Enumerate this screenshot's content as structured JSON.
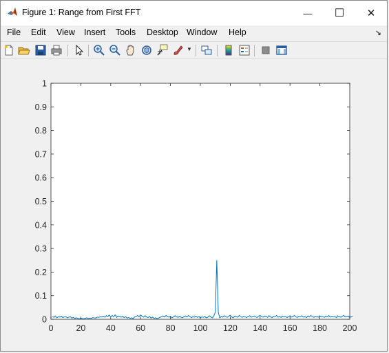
{
  "window": {
    "title": "Figure 1: Range from First FFT",
    "minimize_glyph": "—",
    "maximize_glyph": "☐",
    "close_glyph": "✕"
  },
  "menu": {
    "items": [
      "File",
      "Edit",
      "View",
      "Insert",
      "Tools",
      "Desktop",
      "Window",
      "Help"
    ],
    "corner_glyph": "↘"
  },
  "toolbar": {
    "icons": [
      "new-figure-icon",
      "open-file-icon",
      "save-icon",
      "print-icon",
      "pointer-icon",
      "zoom-in-icon",
      "zoom-out-icon",
      "pan-icon",
      "rotate-3d-icon",
      "data-cursor-icon",
      "brush-icon",
      "brush-dropdown-icon",
      "link-plot-icon",
      "colorbar-icon",
      "legend-icon",
      "hide-plot-tools-icon",
      "show-plot-tools-icon"
    ]
  },
  "colors": {
    "line": "#0072bd",
    "axes_bg": "#ffffff",
    "figure_bg": "#f0f0f0"
  },
  "chart_data": {
    "type": "line",
    "title": "",
    "xlabel": "",
    "ylabel": "",
    "xlim": [
      0,
      200
    ],
    "ylim": [
      0,
      1
    ],
    "x_ticks": [
      0,
      20,
      40,
      60,
      80,
      100,
      120,
      140,
      160,
      180,
      200
    ],
    "y_ticks": [
      0,
      0.1,
      0.2,
      0.3,
      0.4,
      0.5,
      0.6,
      0.7,
      0.8,
      0.9,
      1
    ],
    "y_tick_labels": [
      "0",
      "0.1",
      "0.2",
      "0.3",
      "0.4",
      "0.5",
      "0.6",
      "0.7",
      "0.8",
      "0.9",
      "1"
    ],
    "x_tick_labels": [
      "0",
      "20",
      "40",
      "60",
      "80",
      "100",
      "120",
      "140",
      "160",
      "180",
      "200"
    ],
    "grid": false,
    "series": [
      {
        "x_start": 1,
        "x_step": 1,
        "values": [
          0.012,
          0.008,
          0.014,
          0.006,
          0.011,
          0.009,
          0.013,
          0.007,
          0.01,
          0.012,
          0.006,
          0.009,
          0.011,
          0.005,
          0.008,
          0.003,
          0.006,
          0.004,
          0.002,
          0.005,
          0.003,
          0.002,
          0.004,
          0.006,
          0.003,
          0.005,
          0.004,
          0.007,
          0.006,
          0.005,
          0.009,
          0.008,
          0.011,
          0.01,
          0.013,
          0.009,
          0.015,
          0.012,
          0.018,
          0.01,
          0.016,
          0.011,
          0.019,
          0.008,
          0.014,
          0.012,
          0.009,
          0.013,
          0.007,
          0.011,
          0.005,
          0.008,
          0.004,
          0.006,
          0.003,
          0.01,
          0.012,
          0.016,
          0.011,
          0.018,
          0.013,
          0.009,
          0.015,
          0.01,
          0.007,
          0.012,
          0.005,
          0.009,
          0.004,
          0.006,
          0.003,
          0.005,
          0.008,
          0.011,
          0.014,
          0.01,
          0.016,
          0.012,
          0.009,
          0.013,
          0.006,
          0.01,
          0.015,
          0.011,
          0.008,
          0.013,
          0.009,
          0.006,
          0.011,
          0.014,
          0.01,
          0.016,
          0.012,
          0.007,
          0.011,
          0.009,
          0.013,
          0.008,
          0.012,
          0.006,
          0.01,
          0.008,
          0.012,
          0.006,
          0.009,
          0.015,
          0.01,
          0.006,
          0.014,
          0.03,
          0.25,
          0.03,
          0.006,
          0.012,
          0.009,
          0.015,
          0.011,
          0.008,
          0.013,
          0.017,
          0.01,
          0.006,
          0.014,
          0.011,
          0.009,
          0.016,
          0.012,
          0.008,
          0.013,
          0.01,
          0.007,
          0.012,
          0.015,
          0.009,
          0.011,
          0.014,
          0.01,
          0.008,
          0.013,
          0.016,
          0.011,
          0.009,
          0.014,
          0.012,
          0.008,
          0.015,
          0.01,
          0.007,
          0.013,
          0.011,
          0.016,
          0.009,
          0.012,
          0.008,
          0.014,
          0.01,
          0.013,
          0.007,
          0.011,
          0.015,
          0.009,
          0.012,
          0.016,
          0.01,
          0.008,
          0.013,
          0.011,
          0.015,
          0.009,
          0.012,
          0.007,
          0.014,
          0.01,
          0.016,
          0.012,
          0.008,
          0.013,
          0.011,
          0.009,
          0.015,
          0.01,
          0.012,
          0.008,
          0.014,
          0.011,
          0.016,
          0.009,
          0.013,
          0.01,
          0.012,
          0.007,
          0.015,
          0.011,
          0.009,
          0.013,
          0.016,
          0.01,
          0.012,
          0.014,
          0.008,
          0.011,
          0.013
        ]
      }
    ]
  }
}
